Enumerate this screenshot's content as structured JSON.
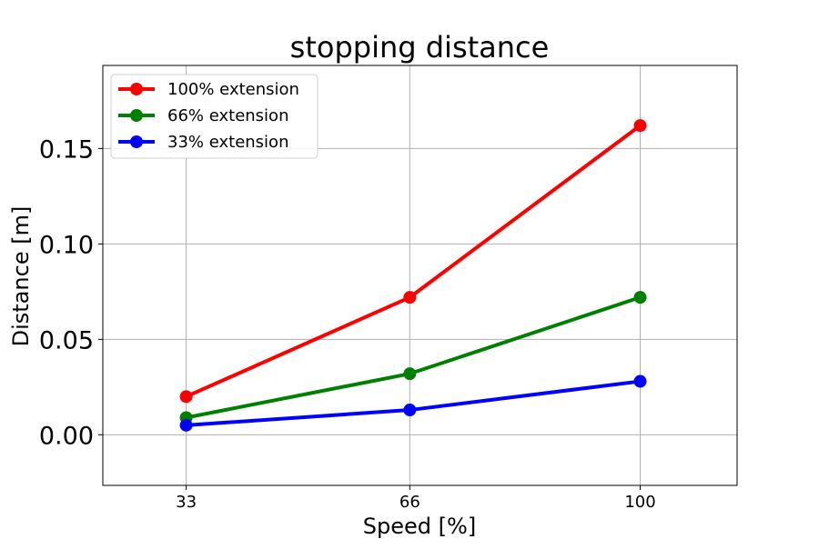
{
  "chart_data": {
    "type": "line",
    "title": "stopping distance",
    "xlabel": "Speed [%]",
    "ylabel": "Distance [m]",
    "x": [
      33,
      66,
      100
    ],
    "x_tick_labels": [
      "33",
      "66",
      "100"
    ],
    "y_ticks": [
      0.0,
      0.05,
      0.1,
      0.15
    ],
    "y_tick_labels": [
      "0.00",
      "0.05",
      "0.10",
      "0.15"
    ],
    "xlim": [
      20.7,
      114.3
    ],
    "ylim": [
      -0.0265,
      0.1935
    ],
    "grid": true,
    "legend_position": "upper-left",
    "series": [
      {
        "name": "100% extension",
        "color": "#ff0000",
        "values": [
          0.02,
          0.072,
          0.162
        ]
      },
      {
        "name": "66% extension",
        "color": "#008000",
        "values": [
          0.009,
          0.032,
          0.072
        ]
      },
      {
        "name": "33% extension",
        "color": "#0000ff",
        "values": [
          0.005,
          0.013,
          0.028
        ]
      }
    ]
  }
}
